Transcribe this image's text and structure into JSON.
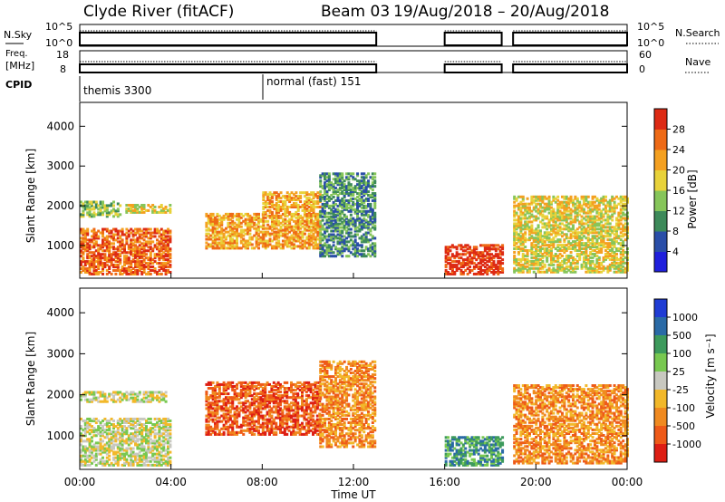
{
  "header": {
    "title": "Clyde River (fitACF)",
    "beam_label": "Beam 03",
    "date_range": "19/Aug/2018 – 20/Aug/2018"
  },
  "status_panels": {
    "nsky_label": "N.Sky",
    "nsearch_label": "N.Search",
    "noise_ticks_left": [
      "10^5",
      "10^0"
    ],
    "noise_ticks_right": [
      "10^5",
      "10^0"
    ],
    "freq_label": "Freq.",
    "freq_unit": "[MHz]",
    "freq_ticks": [
      "18",
      "8"
    ],
    "nave_label": "Nave",
    "nave_ticks": [
      "60",
      "0"
    ],
    "cpid_label": "CPID",
    "cpid_segments": [
      {
        "name": "themis 3300",
        "start_hour": 0
      },
      {
        "name": "normal (fast) 151",
        "start_hour": 8
      }
    ],
    "data_windows_hours": [
      [
        0,
        13
      ],
      [
        16,
        18.5
      ],
      [
        19,
        24
      ]
    ]
  },
  "chart_data": [
    {
      "type": "heatmap",
      "name": "Power",
      "ylabel": "Slant Range [km]",
      "colorbar_label": "Power [dB]",
      "xlim_hours": [
        0,
        24
      ],
      "ylim": [
        180,
        4600
      ],
      "yticks": [
        1000,
        2000,
        3000,
        4000
      ],
      "colorbar_ticks": [
        "4",
        "8",
        "12",
        "16",
        "20",
        "24",
        "28"
      ],
      "colorbar_colors": [
        "#1f1fdc",
        "#2a4ea8",
        "#3d8a5a",
        "#86c55a",
        "#e8d23a",
        "#f4a020",
        "#ee6a16",
        "#dd2a14"
      ],
      "regions": [
        {
          "hours": [
            0,
            4.0
          ],
          "range_km": [
            250,
            1400
          ],
          "level": 6
        },
        {
          "hours": [
            0,
            1.8
          ],
          "range_km": [
            1700,
            2100
          ],
          "level": 3
        },
        {
          "hours": [
            2.0,
            4.0
          ],
          "range_km": [
            1800,
            2000
          ],
          "level": 4
        },
        {
          "hours": [
            5.5,
            8.0
          ],
          "range_km": [
            900,
            1800
          ],
          "level": 5
        },
        {
          "hours": [
            8.0,
            10.5
          ],
          "range_km": [
            900,
            2300
          ],
          "level": 5
        },
        {
          "hours": [
            10.5,
            12.9
          ],
          "range_km": [
            700,
            2800
          ],
          "level": 2
        },
        {
          "hours": [
            16.0,
            18.5
          ],
          "range_km": [
            250,
            1000
          ],
          "level": 7
        },
        {
          "hours": [
            19.0,
            24.0
          ],
          "range_km": [
            300,
            2200
          ],
          "level": 4
        }
      ]
    },
    {
      "type": "heatmap",
      "name": "Velocity",
      "ylabel": "Slant Range [km]",
      "xlabel": "Time UT",
      "colorbar_label": "Velocity [m s⁻¹]",
      "xlim_hours": [
        0,
        24
      ],
      "ylim": [
        180,
        4600
      ],
      "yticks": [
        1000,
        2000,
        3000,
        4000
      ],
      "xticks": [
        "00:00",
        "04:00",
        "08:00",
        "12:00",
        "16:00",
        "20:00",
        "00:00"
      ],
      "colorbar_ticks": [
        "1000",
        "500",
        "100",
        "25",
        "-25",
        "-100",
        "-500",
        "-1000"
      ],
      "colorbar_colors": [
        "#1f3cd4",
        "#2a6aa6",
        "#3d9a5c",
        "#78c850",
        "#c8c8c0",
        "#f2b82a",
        "#f08a20",
        "#ee5a18",
        "#dd1e14"
      ],
      "regions": [
        {
          "hours": [
            0,
            4.0
          ],
          "range_km": [
            250,
            1400
          ],
          "level": 4
        },
        {
          "hours": [
            0,
            3.8
          ],
          "range_km": [
            1800,
            2050
          ],
          "level": 4
        },
        {
          "hours": [
            5.5,
            10.5
          ],
          "range_km": [
            1000,
            2300
          ],
          "level": 7
        },
        {
          "hours": [
            10.5,
            12.9
          ],
          "range_km": [
            700,
            2800
          ],
          "level": 6
        },
        {
          "hours": [
            16.0,
            18.5
          ],
          "range_km": [
            250,
            950
          ],
          "level": 2
        },
        {
          "hours": [
            19.0,
            24.0
          ],
          "range_km": [
            300,
            2200
          ],
          "level": 6
        }
      ]
    }
  ]
}
